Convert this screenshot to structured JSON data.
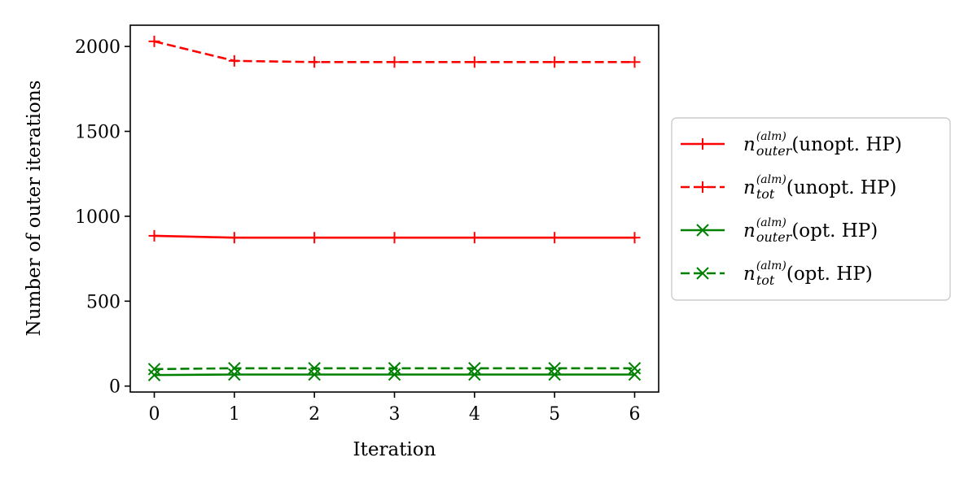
{
  "chart_data": {
    "type": "line",
    "title": "",
    "xlabel": "Iteration",
    "ylabel": "Number of outer iterations",
    "x": [
      0,
      1,
      2,
      3,
      4,
      5,
      6
    ],
    "xlim": [
      -0.3,
      6.3
    ],
    "ylim": [
      -35,
      2125
    ],
    "xticks": [
      0,
      1,
      2,
      3,
      4,
      5,
      6
    ],
    "yticks": [
      0,
      500,
      1000,
      1500,
      2000
    ],
    "grid": false,
    "legend_position": "outside-right",
    "series": [
      {
        "n": "n",
        "sub": "outer",
        "sup": "(alm)",
        "suffix": " (unopt. HP)",
        "color": "#ff0000",
        "dash": "solid",
        "marker": "plus",
        "values": [
          885,
          874,
          874,
          874,
          874,
          874,
          874
        ]
      },
      {
        "n": "n",
        "sub": "tot",
        "sup": "(alm)",
        "suffix": " (unopt. HP)",
        "color": "#ff0000",
        "dash": "dashed",
        "marker": "plus",
        "values": [
          2030,
          1915,
          1908,
          1908,
          1908,
          1908,
          1908
        ]
      },
      {
        "n": "n",
        "sub": "outer",
        "sup": "(alm)",
        "suffix": " (opt. HP)",
        "color": "#008000",
        "dash": "solid",
        "marker": "x",
        "values": [
          65,
          68,
          68,
          68,
          68,
          68,
          68
        ]
      },
      {
        "n": "n",
        "sub": "tot",
        "sup": "(alm)",
        "suffix": " (opt. HP)",
        "color": "#008000",
        "dash": "dashed",
        "marker": "x",
        "values": [
          100,
          105,
          105,
          105,
          105,
          105,
          105
        ]
      }
    ]
  }
}
